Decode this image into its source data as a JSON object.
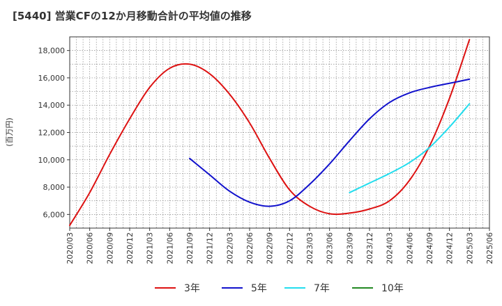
{
  "title": "[5440]  営業CFの12か月移動合計の平均値の推移",
  "chart_data": {
    "type": "line",
    "title": "[5440]  営業CFの12か月移動合計の平均値の推移",
    "ylabel": "(百万円)",
    "xlabel": "",
    "ylim": [
      5000,
      19000
    ],
    "yticks": [
      6000,
      8000,
      10000,
      12000,
      14000,
      16000,
      18000
    ],
    "ytick_labels": [
      "6,000",
      "8,000",
      "10,000",
      "12,000",
      "14,000",
      "16,000",
      "18,000"
    ],
    "xlim": [
      "2020/03",
      "2025/06"
    ],
    "xtick_labels": [
      "2020/03",
      "2020/06",
      "2020/09",
      "2020/12",
      "2021/03",
      "2021/06",
      "2021/09",
      "2021/12",
      "2022/03",
      "2022/06",
      "2022/09",
      "2022/12",
      "2023/03",
      "2023/06",
      "2023/09",
      "2023/12",
      "2024/03",
      "2024/06",
      "2024/09",
      "2024/12",
      "2025/03",
      "2025/06"
    ],
    "grid": true,
    "legend_position": "bottom",
    "series": [
      {
        "name": "3年",
        "color": "#dd1111",
        "x": [
          "2020/03",
          "2020/06",
          "2020/09",
          "2020/12",
          "2021/03",
          "2021/06",
          "2021/09",
          "2021/12",
          "2022/03",
          "2022/06",
          "2022/09",
          "2022/12",
          "2023/03",
          "2023/06",
          "2023/09",
          "2023/12",
          "2024/03",
          "2024/06",
          "2024/09",
          "2024/12",
          "2025/03"
        ],
        "values": [
          5200,
          7600,
          10400,
          13000,
          15300,
          16700,
          17000,
          16300,
          14800,
          12700,
          10100,
          7800,
          6600,
          6050,
          6100,
          6400,
          7000,
          8500,
          11000,
          14500,
          18800
        ]
      },
      {
        "name": "5年",
        "color": "#1111cc",
        "x": [
          "2021/09",
          "2021/12",
          "2022/03",
          "2022/06",
          "2022/09",
          "2022/12",
          "2023/03",
          "2023/06",
          "2023/09",
          "2023/12",
          "2024/03",
          "2024/06",
          "2024/09",
          "2024/12",
          "2025/03"
        ],
        "values": [
          10100,
          8900,
          7700,
          6900,
          6600,
          7000,
          8200,
          9700,
          11400,
          13000,
          14200,
          14900,
          15300,
          15600,
          15900
        ]
      },
      {
        "name": "7年",
        "color": "#22ddee",
        "x": [
          "2023/09",
          "2023/12",
          "2024/03",
          "2024/06",
          "2024/09",
          "2024/12",
          "2025/03"
        ],
        "values": [
          7600,
          8300,
          9000,
          9800,
          10900,
          12400,
          14100
        ]
      },
      {
        "name": "10年",
        "color": "#228822",
        "x": [],
        "values": []
      }
    ]
  }
}
